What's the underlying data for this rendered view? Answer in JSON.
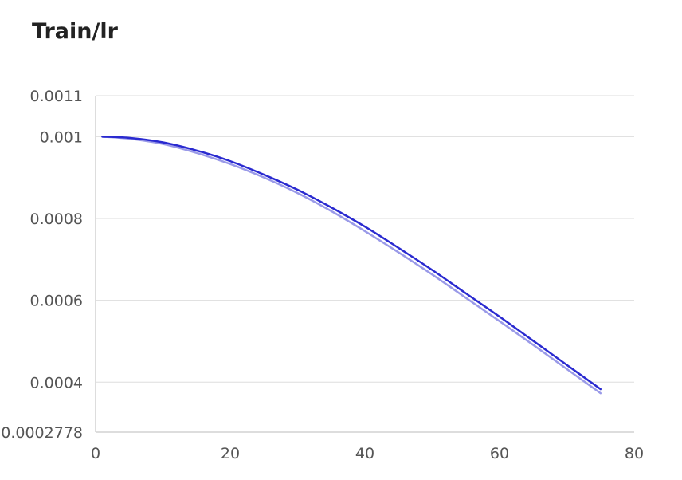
{
  "chart_data": {
    "type": "line",
    "title": "Train/lr",
    "xlabel": "",
    "ylabel": "",
    "xlim": [
      0,
      80
    ],
    "ylim": [
      0.0002778,
      0.0011
    ],
    "x_ticks": [
      0,
      20,
      40,
      60,
      80
    ],
    "x_tick_labels": [
      "0",
      "20",
      "40",
      "60",
      "80"
    ],
    "y_ticks": [
      0.0002778,
      0.0004,
      0.0006,
      0.0008,
      0.001,
      0.0011
    ],
    "y_tick_labels": [
      "0.0002778",
      "0.0004",
      "0.0006",
      "0.0008",
      "0.001",
      "0.0011"
    ],
    "grid": true,
    "series": [
      {
        "color": "#9a9ae8",
        "x": [
          1,
          5,
          10,
          15,
          20,
          25,
          30,
          35,
          40,
          45,
          50,
          55,
          60,
          65,
          70,
          75
        ],
        "y": [
          0.001,
          0.000995,
          0.000982,
          0.00096,
          0.000933,
          0.0009,
          0.000862,
          0.000818,
          0.000769,
          0.000717,
          0.000663,
          0.000606,
          0.000549,
          0.000491,
          0.000432,
          0.000373
        ]
      },
      {
        "color": "#2a2ad0",
        "x": [
          1,
          5,
          10,
          15,
          20,
          25,
          30,
          35,
          40,
          45,
          50,
          55,
          60,
          65,
          70,
          75
        ],
        "y": [
          0.001,
          0.000997,
          0.000986,
          0.000966,
          0.00094,
          0.000907,
          0.00087,
          0.000827,
          0.00078,
          0.000728,
          0.000674,
          0.000617,
          0.00056,
          0.000501,
          0.000442,
          0.000383
        ]
      }
    ]
  }
}
